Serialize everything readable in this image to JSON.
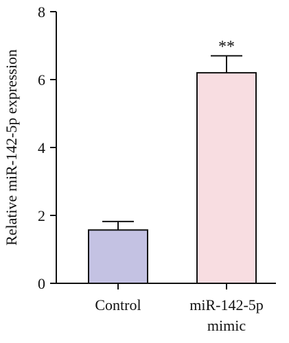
{
  "chart_data": {
    "type": "bar",
    "categories": [
      {
        "lines": [
          "Control"
        ]
      },
      {
        "lines": [
          "miR-142-5p",
          "mimic"
        ]
      }
    ],
    "values": [
      1.57,
      6.2
    ],
    "errors": [
      0.25,
      0.5
    ],
    "bar_colors": [
      "#c4c2e3",
      "#f8dde1"
    ],
    "annotations": [
      "",
      "**"
    ],
    "ylabel": "Relative miR-142-5p expression",
    "ylim": [
      0,
      8
    ],
    "yticks": [
      0,
      2,
      4,
      6,
      8
    ],
    "grid": false,
    "legend": "none"
  }
}
